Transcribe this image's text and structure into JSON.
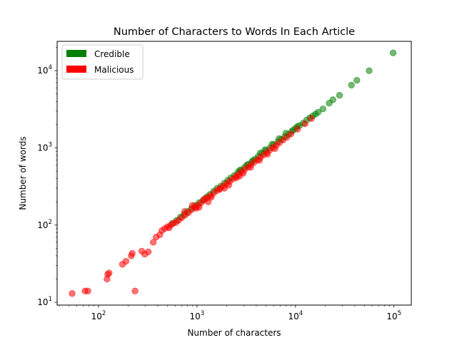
{
  "chart_data": {
    "type": "scatter",
    "title": "Number of Characters to Words In Each Article",
    "xlabel": "Number of characters",
    "ylabel": "Number of words",
    "xscale": "log",
    "yscale": "log",
    "xlim": [
      38,
      150000
    ],
    "ylim": [
      9.2,
      24000
    ],
    "xticks": [
      {
        "value": 100,
        "base": "10",
        "exp": "2"
      },
      {
        "value": 1000,
        "base": "10",
        "exp": "3"
      },
      {
        "value": 10000,
        "base": "10",
        "exp": "4"
      },
      {
        "value": 100000,
        "base": "10",
        "exp": "5"
      }
    ],
    "yticks": [
      {
        "value": 10,
        "base": "10",
        "exp": "1"
      },
      {
        "value": 100,
        "base": "10",
        "exp": "2"
      },
      {
        "value": 1000,
        "base": "10",
        "exp": "3"
      },
      {
        "value": 10000,
        "base": "10",
        "exp": "4"
      }
    ],
    "grid": false,
    "legend_position": "upper-left",
    "series": [
      {
        "name": "Credible",
        "color": "#008000",
        "opacity": 0.55,
        "points": [
          [
            98000,
            17000
          ],
          [
            56000,
            10000
          ],
          [
            42000,
            7500
          ],
          [
            37000,
            6500
          ],
          [
            28000,
            4800
          ],
          [
            24000,
            4200
          ],
          [
            22000,
            3800
          ],
          [
            19000,
            3200
          ],
          [
            17000,
            2900
          ],
          [
            15000,
            2600
          ],
          [
            13000,
            2300
          ],
          [
            12000,
            2100
          ],
          [
            11000,
            1950
          ],
          [
            10000,
            1800
          ],
          [
            9200,
            1650
          ],
          [
            8500,
            1500
          ],
          [
            7800,
            1400
          ],
          [
            7200,
            1300
          ],
          [
            6600,
            1200
          ],
          [
            6000,
            1100
          ],
          [
            5500,
            1000
          ],
          [
            5000,
            920
          ],
          [
            4600,
            850
          ],
          [
            4200,
            780
          ],
          [
            3900,
            720
          ],
          [
            3600,
            660
          ],
          [
            3300,
            610
          ],
          [
            3050,
            560
          ],
          [
            2800,
            520
          ],
          [
            2600,
            480
          ],
          [
            2400,
            440
          ],
          [
            2200,
            410
          ],
          [
            2050,
            380
          ],
          [
            1900,
            350
          ],
          [
            1750,
            320
          ],
          [
            1600,
            300
          ],
          [
            1480,
            275
          ],
          [
            1350,
            250
          ],
          [
            1250,
            230
          ],
          [
            1150,
            210
          ],
          [
            1050,
            195
          ],
          [
            960,
            180
          ],
          [
            880,
            165
          ],
          [
            800,
            150
          ],
          [
            740,
            138
          ],
          [
            680,
            127
          ],
          [
            620,
            115
          ],
          [
            560,
            105
          ],
          [
            8000,
            1550
          ],
          [
            6800,
            1320
          ],
          [
            5800,
            1120
          ],
          [
            4900,
            950
          ],
          [
            4400,
            860
          ],
          [
            3700,
            690
          ],
          [
            3200,
            600
          ],
          [
            2700,
            510
          ],
          [
            16000,
            2750
          ],
          [
            14000,
            2450
          ],
          [
            10500,
            1900
          ],
          [
            9500,
            1700
          ]
        ]
      },
      {
        "name": "Malicious",
        "color": "#ff0000",
        "opacity": 0.55,
        "points": [
          [
            54,
            13
          ],
          [
            73,
            14
          ],
          [
            78,
            14
          ],
          [
            235,
            14
          ],
          [
            122,
            20
          ],
          [
            124,
            23
          ],
          [
            128,
            24
          ],
          [
            175,
            31
          ],
          [
            190,
            34
          ],
          [
            215,
            40
          ],
          [
            220,
            43
          ],
          [
            275,
            46
          ],
          [
            295,
            42
          ],
          [
            320,
            45
          ],
          [
            360,
            60
          ],
          [
            385,
            70
          ],
          [
            420,
            75
          ],
          [
            440,
            85
          ],
          [
            470,
            90
          ],
          [
            500,
            95
          ],
          [
            520,
            92
          ],
          [
            540,
            100
          ],
          [
            570,
            105
          ],
          [
            610,
            108
          ],
          [
            650,
            115
          ],
          [
            700,
            125
          ],
          [
            760,
            135
          ],
          [
            820,
            145
          ],
          [
            880,
            158
          ],
          [
            950,
            170
          ],
          [
            1020,
            180
          ],
          [
            1100,
            195
          ],
          [
            1180,
            210
          ],
          [
            1270,
            225
          ],
          [
            1370,
            240
          ],
          [
            1480,
            260
          ],
          [
            1600,
            280
          ],
          [
            1720,
            300
          ],
          [
            1850,
            320
          ],
          [
            2000,
            345
          ],
          [
            2150,
            370
          ],
          [
            2300,
            395
          ],
          [
            2480,
            425
          ],
          [
            2650,
            455
          ],
          [
            2850,
            490
          ],
          [
            3050,
            525
          ],
          [
            3300,
            565
          ],
          [
            3550,
            610
          ],
          [
            3800,
            650
          ],
          [
            4100,
            700
          ],
          [
            4400,
            750
          ],
          [
            4750,
            810
          ],
          [
            5100,
            870
          ],
          [
            5500,
            940
          ],
          [
            5900,
            1010
          ],
          [
            6400,
            1080
          ],
          [
            6900,
            1170
          ],
          [
            7500,
            1270
          ],
          [
            8200,
            1380
          ],
          [
            9000,
            1520
          ],
          [
            10500,
            1750
          ],
          [
            12500,
            2050
          ],
          [
            14500,
            2400
          ],
          [
            900,
            180
          ],
          [
            1050,
            170
          ],
          [
            1200,
            220
          ],
          [
            1400,
            230
          ],
          [
            1700,
            290
          ],
          [
            2100,
            330
          ],
          [
            2500,
            410
          ],
          [
            2950,
            470
          ],
          [
            3500,
            560
          ],
          [
            4300,
            690
          ],
          [
            5200,
            830
          ],
          [
            6200,
            980
          ],
          [
            750,
            150
          ],
          [
            980,
            165
          ],
          [
            1300,
            200
          ],
          [
            1900,
            300
          ],
          [
            2700,
            430
          ]
        ]
      }
    ]
  }
}
